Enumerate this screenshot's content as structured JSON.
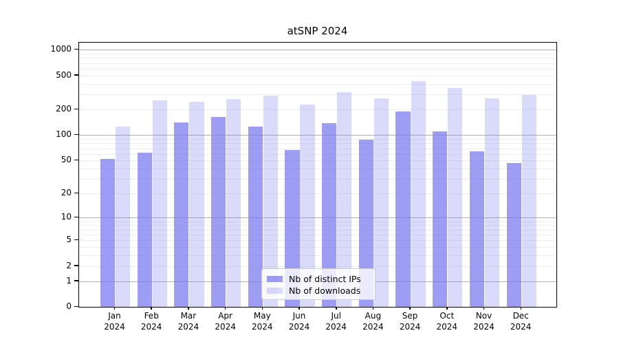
{
  "chart_data": {
    "type": "bar",
    "title": "atSNP 2024",
    "categories": [
      "Jan 2024",
      "Feb 2024",
      "Mar 2024",
      "Apr 2024",
      "May 2024",
      "Jun 2024",
      "Jul 2024",
      "Aug 2024",
      "Sep 2024",
      "Oct 2024",
      "Nov 2024",
      "Dec 2024"
    ],
    "series": [
      {
        "name": "Nb of distinct IPs",
        "hex": "#a8a8f6",
        "fill": "rgba(119,119,238,0.72)",
        "values": [
          52,
          62,
          141,
          163,
          127,
          67,
          139,
          88,
          191,
          110,
          64,
          47
        ]
      },
      {
        "name": "Nb of downloads",
        "hex": "#d9d9f8",
        "fill": "rgba(119,119,238,0.27)",
        "values": [
          127,
          258,
          245,
          266,
          289,
          228,
          321,
          271,
          427,
          357,
          268,
          294
        ]
      }
    ],
    "xlabel": "",
    "ylabel": "",
    "yscale": "log1p",
    "ylim": [
      0,
      1200
    ],
    "y_ticks": [
      0,
      1,
      2,
      5,
      10,
      20,
      50,
      100,
      200,
      500,
      1000
    ],
    "grid_major_values": [
      1,
      10,
      100,
      1000
    ],
    "grid_minor_values": [
      2,
      3,
      4,
      5,
      6,
      7,
      8,
      9,
      20,
      30,
      40,
      50,
      60,
      70,
      80,
      90,
      200,
      300,
      400,
      500,
      600,
      700,
      800,
      900
    ],
    "grid": "horizontal major+minor",
    "legend_position": "lower center",
    "colors": {
      "grid_major": "#b0b0b0",
      "grid_minor": "#ededed",
      "axis": "#000000",
      "background": "#ffffff"
    }
  }
}
